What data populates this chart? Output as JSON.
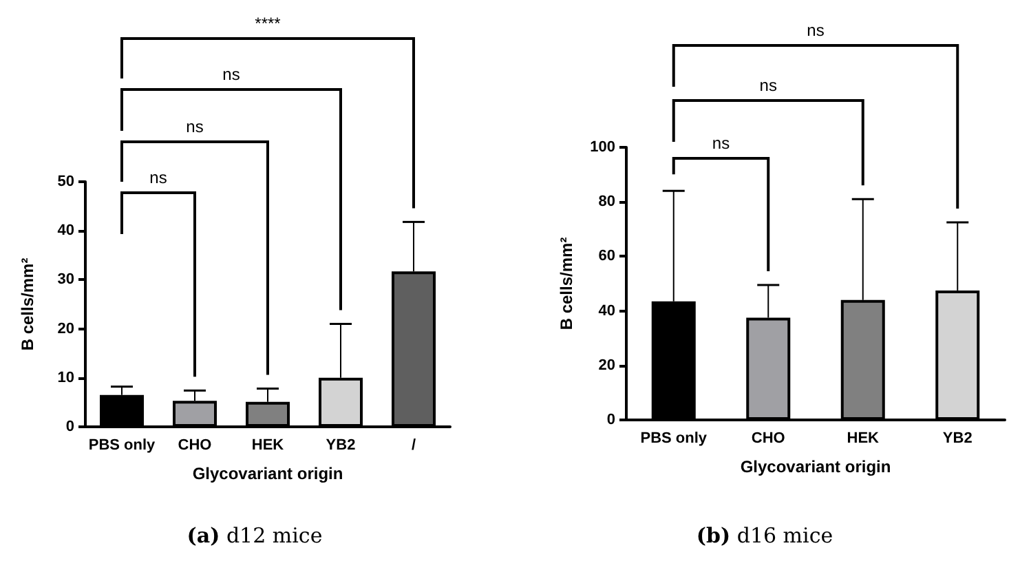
{
  "chart_data": [
    {
      "type": "bar",
      "xlabel": "Glycovariant origin",
      "ylabel": "B cells/mm²",
      "categories": [
        "PBS only",
        "CHO",
        "HEK",
        "YB2",
        "/"
      ],
      "values": [
        6.5,
        5.3,
        5.1,
        10,
        31.7
      ],
      "colors": [
        "#000000",
        "#a0a0a4",
        "#808080",
        "#d3d3d3",
        "#5f5f5f"
      ],
      "errors": [
        [
          6.5,
          8.2
        ],
        [
          5.3,
          7.4
        ],
        [
          5.1,
          7.8
        ],
        [
          10,
          21
        ],
        [
          31.7,
          41.8
        ]
      ],
      "ylim": [
        0,
        50
      ],
      "yticks": [
        0,
        10,
        20,
        30,
        40,
        50
      ],
      "grid": false,
      "annotations": [
        "ns",
        "ns",
        "ns",
        "****",
        "(a) d12 mice"
      ]
    },
    {
      "type": "bar",
      "xlabel": "Glycovariant origin",
      "ylabel": "B cells/mm²",
      "categories": [
        "PBS only",
        "CHO",
        "HEK",
        "YB2"
      ],
      "values": [
        43.5,
        37.5,
        44,
        47.5
      ],
      "colors": [
        "#000000",
        "#a0a0a4",
        "#808080",
        "#d3d3d3"
      ],
      "errors": [
        [
          43.5,
          84
        ],
        [
          37.5,
          49.5
        ],
        [
          44,
          81
        ],
        [
          47.5,
          72.5
        ]
      ],
      "ylim": [
        0,
        100
      ],
      "yticks": [
        0,
        20,
        40,
        60,
        80,
        100
      ],
      "grid": false,
      "annotations": [
        "ns",
        "ns",
        "ns",
        "(b) d16 mice"
      ]
    }
  ]
}
